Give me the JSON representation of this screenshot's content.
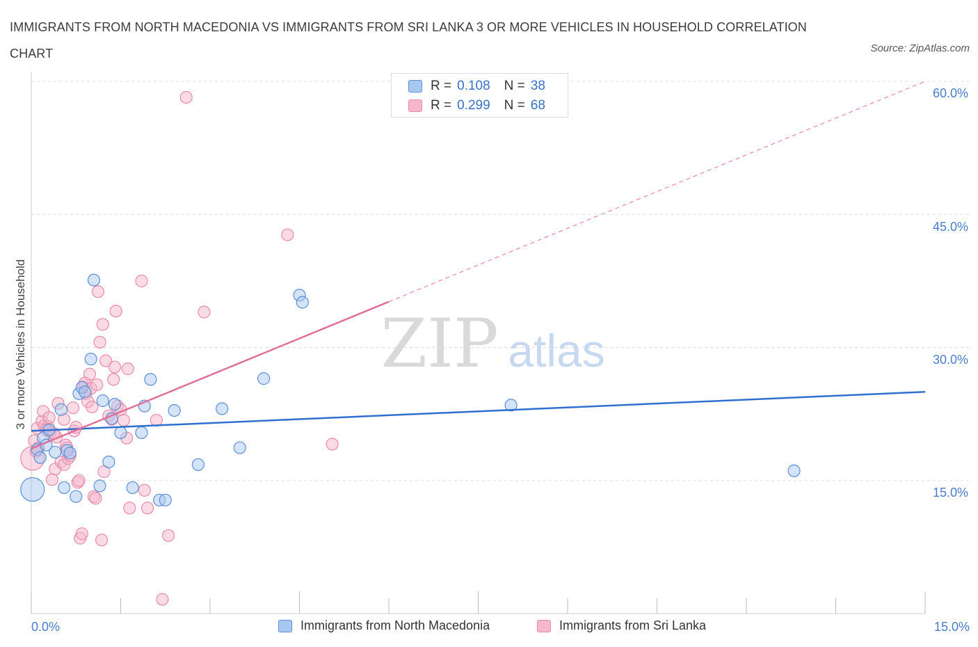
{
  "header": {
    "title": "IMMIGRANTS FROM NORTH MACEDONIA VS IMMIGRANTS FROM SRI LANKA 3 OR MORE VEHICLES IN HOUSEHOLD CORRELATION CHART",
    "source": "Source: ZipAtlas.com"
  },
  "watermark": {
    "zip": "ZIP",
    "atlas": "atlas"
  },
  "legend": {
    "series1": {
      "r_label": "R =",
      "r_value": "0.108",
      "n_label": "N =",
      "n_value": "38"
    },
    "series2": {
      "r_label": "R =",
      "r_value": "0.299",
      "n_label": "N =",
      "n_value": "68"
    }
  },
  "colors": {
    "blue_fill": "#a9c8f0",
    "blue_stroke": "#5b8fd6",
    "blue_line": "#2f6fcf",
    "pink_fill": "#f5b8cb",
    "pink_stroke": "#e88aa8",
    "pink_line": "#e0709a",
    "tick_text": "#4a7cc9",
    "grid": "#dddddd"
  },
  "chart_data": {
    "type": "scatter",
    "title": "IMMIGRANTS FROM NORTH MACEDONIA VS IMMIGRANTS FROM SRI LANKA 3 OR MORE VEHICLES IN HOUSEHOLD CORRELATION CHART",
    "xlabel": "",
    "ylabel": "3 or more Vehicles in Household",
    "xlim": [
      0,
      15
    ],
    "ylim": [
      0,
      60
    ],
    "x_tick_labels": [
      "0.0%",
      "15.0%"
    ],
    "y_ticks": [
      15,
      30,
      45,
      60
    ],
    "y_tick_labels": [
      "15.0%",
      "30.0%",
      "45.0%",
      "60.0%"
    ],
    "grid": true,
    "legend_position": "bottom",
    "series": [
      {
        "name": "Immigrants from North Macedonia",
        "color": "blue",
        "R": 0.108,
        "N": 38,
        "trend": {
          "x": [
            0,
            15
          ],
          "y": [
            20.6,
            25.0
          ],
          "style": "solid"
        },
        "points": [
          {
            "x": 0.02,
            "y": 14.0,
            "big": true
          },
          {
            "x": 0.1,
            "y": 18.5
          },
          {
            "x": 0.15,
            "y": 17.6
          },
          {
            "x": 0.2,
            "y": 19.8
          },
          {
            "x": 0.25,
            "y": 19.0
          },
          {
            "x": 0.3,
            "y": 20.7
          },
          {
            "x": 0.4,
            "y": 18.2
          },
          {
            "x": 0.5,
            "y": 23.0
          },
          {
            "x": 0.55,
            "y": 14.2
          },
          {
            "x": 0.6,
            "y": 18.4
          },
          {
            "x": 0.65,
            "y": 18.1
          },
          {
            "x": 0.75,
            "y": 13.2
          },
          {
            "x": 0.8,
            "y": 24.8
          },
          {
            "x": 0.85,
            "y": 25.5
          },
          {
            "x": 0.9,
            "y": 25.0
          },
          {
            "x": 1.0,
            "y": 28.7
          },
          {
            "x": 1.05,
            "y": 37.6
          },
          {
            "x": 1.15,
            "y": 14.4
          },
          {
            "x": 1.2,
            "y": 24.0
          },
          {
            "x": 1.3,
            "y": 17.1
          },
          {
            "x": 1.35,
            "y": 22.0
          },
          {
            "x": 1.4,
            "y": 23.6
          },
          {
            "x": 1.5,
            "y": 20.4
          },
          {
            "x": 1.7,
            "y": 14.2
          },
          {
            "x": 1.85,
            "y": 20.4
          },
          {
            "x": 1.9,
            "y": 23.4
          },
          {
            "x": 2.0,
            "y": 26.4
          },
          {
            "x": 2.15,
            "y": 12.8
          },
          {
            "x": 2.25,
            "y": 12.8
          },
          {
            "x": 2.4,
            "y": 22.9
          },
          {
            "x": 2.8,
            "y": 16.8
          },
          {
            "x": 3.2,
            "y": 23.1
          },
          {
            "x": 3.5,
            "y": 18.7
          },
          {
            "x": 3.9,
            "y": 26.5
          },
          {
            "x": 4.5,
            "y": 35.9
          },
          {
            "x": 4.55,
            "y": 35.1
          },
          {
            "x": 8.05,
            "y": 23.5
          },
          {
            "x": 12.8,
            "y": 16.1
          }
        ]
      },
      {
        "name": "Immigrants from Sri Lanka",
        "color": "pink",
        "R": 0.299,
        "N": 68,
        "trend": {
          "x": [
            0,
            15
          ],
          "y": [
            18.6,
            60.0
          ],
          "solid_until_x": 6.0,
          "style": "solid then dashed"
        },
        "points": [
          {
            "x": 0.02,
            "y": 17.5,
            "big": true
          },
          {
            "x": 0.05,
            "y": 19.5
          },
          {
            "x": 0.1,
            "y": 20.9
          },
          {
            "x": 0.12,
            "y": 18.7
          },
          {
            "x": 0.18,
            "y": 21.7
          },
          {
            "x": 0.2,
            "y": 22.8
          },
          {
            "x": 0.22,
            "y": 21.2
          },
          {
            "x": 0.28,
            "y": 21.1
          },
          {
            "x": 0.3,
            "y": 22.1
          },
          {
            "x": 0.32,
            "y": 20.4
          },
          {
            "x": 0.35,
            "y": 15.1
          },
          {
            "x": 0.4,
            "y": 16.3
          },
          {
            "x": 0.42,
            "y": 19.9
          },
          {
            "x": 0.45,
            "y": 23.7
          },
          {
            "x": 0.5,
            "y": 17.1
          },
          {
            "x": 0.55,
            "y": 16.8
          },
          {
            "x": 0.58,
            "y": 19.0
          },
          {
            "x": 0.6,
            "y": 18.7
          },
          {
            "x": 0.62,
            "y": 17.5
          },
          {
            "x": 0.65,
            "y": 17.8
          },
          {
            "x": 0.7,
            "y": 23.2
          },
          {
            "x": 0.72,
            "y": 20.6
          },
          {
            "x": 0.75,
            "y": 21.0
          },
          {
            "x": 0.78,
            "y": 14.8
          },
          {
            "x": 0.8,
            "y": 15.0
          },
          {
            "x": 0.82,
            "y": 8.5
          },
          {
            "x": 0.85,
            "y": 9.0
          },
          {
            "x": 0.88,
            "y": 25.6
          },
          {
            "x": 0.9,
            "y": 26.0
          },
          {
            "x": 0.92,
            "y": 24.8
          },
          {
            "x": 0.95,
            "y": 23.9
          },
          {
            "x": 0.98,
            "y": 27.0
          },
          {
            "x": 1.0,
            "y": 25.4
          },
          {
            "x": 1.02,
            "y": 23.3
          },
          {
            "x": 1.05,
            "y": 13.2
          },
          {
            "x": 1.08,
            "y": 13.0
          },
          {
            "x": 1.1,
            "y": 25.8
          },
          {
            "x": 1.12,
            "y": 36.3
          },
          {
            "x": 1.15,
            "y": 30.6
          },
          {
            "x": 1.2,
            "y": 32.6
          },
          {
            "x": 1.18,
            "y": 8.3
          },
          {
            "x": 1.22,
            "y": 16.0
          },
          {
            "x": 1.25,
            "y": 28.5
          },
          {
            "x": 1.3,
            "y": 22.3
          },
          {
            "x": 1.35,
            "y": 21.9
          },
          {
            "x": 1.38,
            "y": 26.4
          },
          {
            "x": 1.4,
            "y": 27.8
          },
          {
            "x": 1.42,
            "y": 34.1
          },
          {
            "x": 1.45,
            "y": 23.4
          },
          {
            "x": 1.5,
            "y": 23.0
          },
          {
            "x": 1.55,
            "y": 21.8
          },
          {
            "x": 1.6,
            "y": 19.8
          },
          {
            "x": 1.62,
            "y": 27.6
          },
          {
            "x": 1.65,
            "y": 11.9
          },
          {
            "x": 1.85,
            "y": 37.5
          },
          {
            "x": 1.9,
            "y": 13.9
          },
          {
            "x": 1.95,
            "y": 11.9
          },
          {
            "x": 2.1,
            "y": 21.8
          },
          {
            "x": 2.2,
            "y": 1.6
          },
          {
            "x": 2.3,
            "y": 8.8
          },
          {
            "x": 2.6,
            "y": 58.2
          },
          {
            "x": 2.9,
            "y": 34.0
          },
          {
            "x": 4.3,
            "y": 42.7
          },
          {
            "x": 5.05,
            "y": 19.1
          },
          {
            "x": 0.08,
            "y": 18.3
          },
          {
            "x": 0.25,
            "y": 20.7
          },
          {
            "x": 0.38,
            "y": 20.3
          },
          {
            "x": 0.55,
            "y": 21.9
          }
        ]
      }
    ]
  },
  "bottom_legend": {
    "series1": "Immigrants from North Macedonia",
    "series2": "Immigrants from Sri Lanka"
  }
}
